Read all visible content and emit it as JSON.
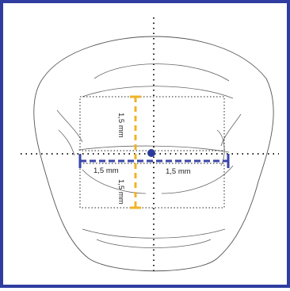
{
  "labels": {
    "top_vertical": "1,5 mm",
    "bottom_vertical": "1,5 mm",
    "left_horizontal": "1,5 mm",
    "right_horizontal": "1,5 mm"
  },
  "colors": {
    "frame": "#2f3da0",
    "horizontal_measure": "#3a45a8",
    "vertical_measure": "#f0b429",
    "center_point": "#2b3a9a",
    "outline": "#555555",
    "dotted_lines": "#222222"
  }
}
